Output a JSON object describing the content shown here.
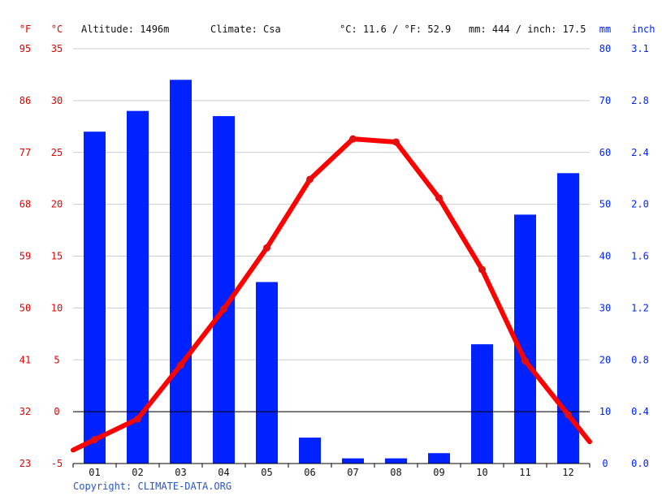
{
  "header": {
    "altitude": "Altitude: 1496m",
    "climate": "Climate: Csa",
    "avg_temp": "°C: 11.6 / °F: 52.9",
    "precip_total": "mm: 444 / inch: 17.5"
  },
  "footer": {
    "copyright": "Copyright: CLIMATE-DATA.ORG"
  },
  "colors": {
    "temperature": "#ff0000",
    "precipitation": "#0022ff",
    "left_axis_text": "#e00000",
    "right_axis_text": "#0022ff",
    "gridline": "#cccccc",
    "zero_line": "#000000"
  },
  "chart_data": {
    "type": "bar",
    "categories": [
      "01",
      "02",
      "03",
      "04",
      "05",
      "06",
      "07",
      "08",
      "09",
      "10",
      "11",
      "12"
    ],
    "series": [
      {
        "type": "bar",
        "axis": "right",
        "values": [
          64,
          68,
          74,
          67,
          35,
          5,
          1,
          1,
          2,
          23,
          48,
          56
        ]
      },
      {
        "type": "line",
        "axis": "left",
        "values": [
          -2.7,
          -0.7,
          4.5,
          9.9,
          15.8,
          22.4,
          26.3,
          26.0,
          20.6,
          13.7,
          4.9,
          -0.3
        ]
      }
    ],
    "left_axis": {
      "unit_c": "°C",
      "unit_f": "°F",
      "ticks_c": [
        "35",
        "30",
        "25",
        "20",
        "15",
        "10",
        "5",
        "0",
        "-5"
      ],
      "ticks_f": [
        "95",
        "86",
        "77",
        "68",
        "59",
        "50",
        "41",
        "32",
        "23"
      ],
      "ylim": [
        -5,
        35
      ]
    },
    "right_axis": {
      "unit_mm": "mm",
      "unit_inch": "inch",
      "ticks_mm": [
        "80",
        "70",
        "60",
        "50",
        "40",
        "30",
        "20",
        "10",
        "0"
      ],
      "ticks_inch": [
        "3.1",
        "2.8",
        "2.4",
        "2.0",
        "1.6",
        "1.2",
        "0.8",
        "0.4",
        "0.0"
      ],
      "ylim": [
        0,
        80
      ]
    },
    "grid": true
  }
}
